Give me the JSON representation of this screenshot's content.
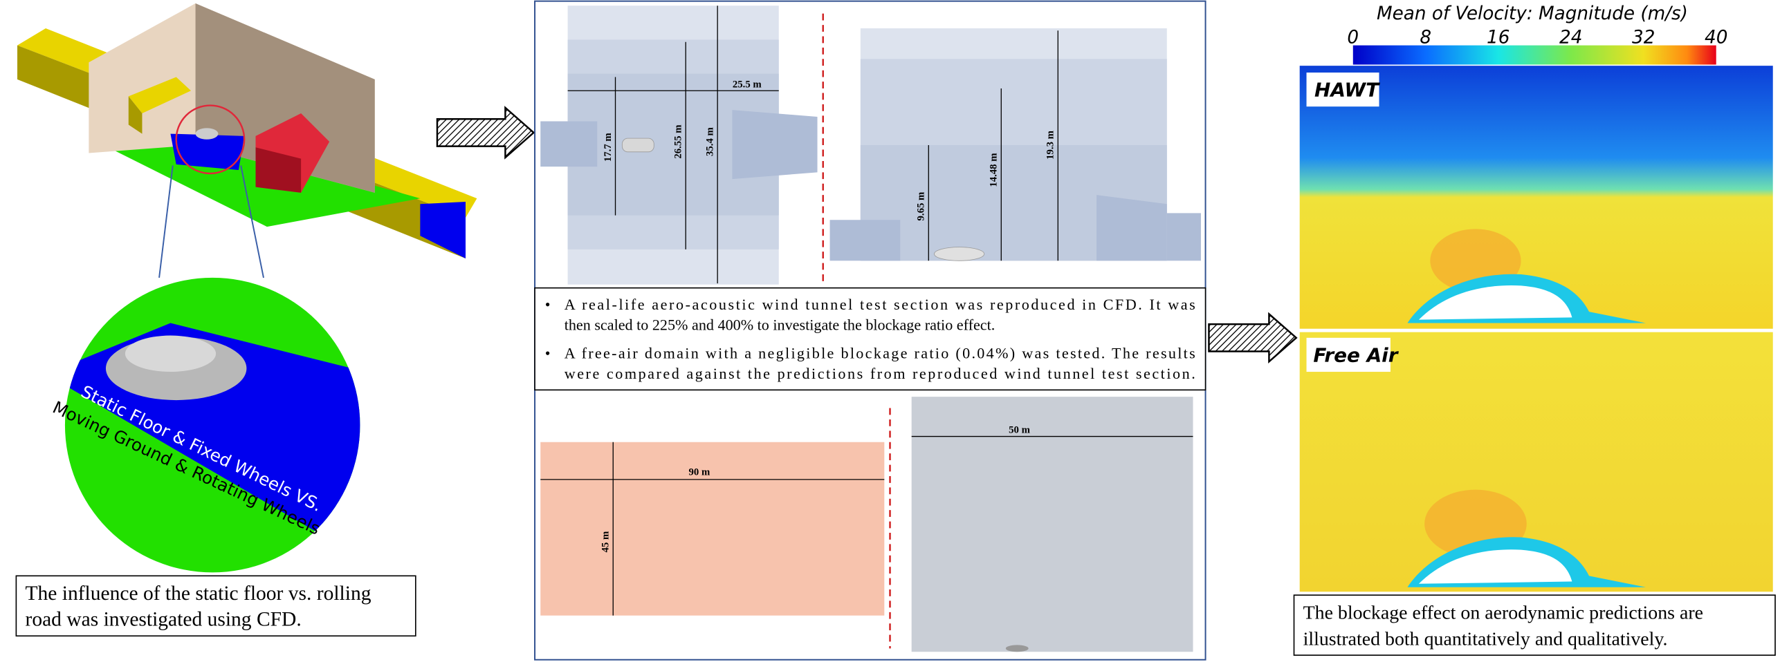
{
  "left": {
    "circle_labels": [
      "Static Floor & Fixed Wheels VS.",
      "Moving Ground & Rotating Wheels"
    ],
    "caption": [
      "The influence of the static floor vs. rolling",
      "road was investigated using CFD."
    ]
  },
  "middle": {
    "top_left_dims": [
      "25.5 m",
      "17.7 m",
      "26.55 m",
      "35.4 m"
    ],
    "top_right_dims": [
      "9.65 m",
      "14.48 m",
      "19.3 m"
    ],
    "bullets": [
      [
        "A real-life aero-acoustic wind tunnel test section was reproduced in CFD. It was",
        "then scaled to 225% and 400% to investigate the blockage ratio effect."
      ],
      [
        "A free-air domain with a negligible blockage ratio (0.04%) was tested. The results",
        "were compared against the predictions from reproduced wind tunnel test section."
      ]
    ],
    "bottom_left_dims": [
      "90 m",
      "45 m"
    ],
    "bottom_right_dims": [
      "50 m"
    ]
  },
  "right": {
    "colorbar_title": "Mean of Velocity: Magnitude (m/s)",
    "colorbar_ticks": [
      0,
      8,
      16,
      24,
      32,
      40
    ],
    "panels": [
      "HAWT",
      "Free Air"
    ],
    "caption": [
      "The blockage effect on aerodynamic predictions are",
      "illustrated both quantitatively and qualitatively."
    ]
  }
}
